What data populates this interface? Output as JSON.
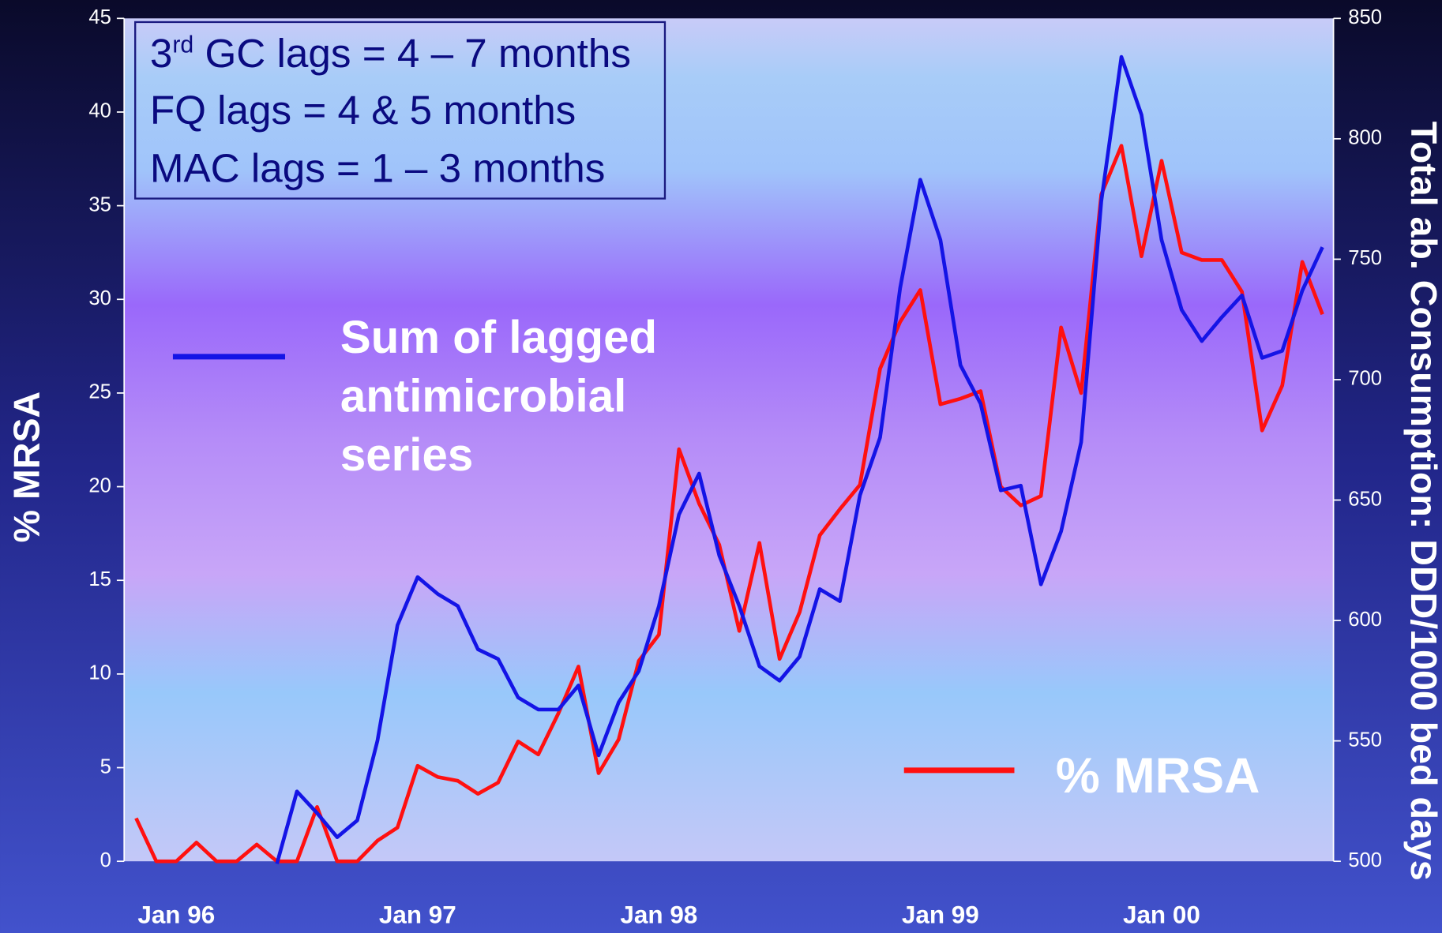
{
  "chart_data": {
    "type": "line",
    "y_label": "% MRSA",
    "y2_label": "Total ab. Consumption: DDD/1000 bed days",
    "annotation": {
      "line1": {
        "base": "3",
        "sup": "rd",
        "text": " GC lags = 4 – 7 months"
      },
      "line2": "FQ lags = 4 & 5 months",
      "line3": "MAC lags = 1 – 3 months"
    },
    "categories": [
      null,
      null,
      "Jan 96",
      null,
      null,
      null,
      null,
      null,
      null,
      null,
      null,
      null,
      null,
      null,
      "Jan 97",
      null,
      null,
      null,
      null,
      null,
      null,
      null,
      null,
      null,
      null,
      null,
      "Jan 98",
      null,
      null,
      null,
      null,
      null,
      null,
      null,
      null,
      null,
      null,
      null,
      null,
      null,
      "Jan 99",
      null,
      null,
      null,
      null,
      null,
      null,
      null,
      null,
      null,
      null,
      "Jan 00",
      null,
      null,
      null,
      null,
      null,
      null,
      null,
      null
    ],
    "ylim": [
      0,
      45
    ],
    "yticks": [
      0,
      5,
      10,
      15,
      20,
      25,
      30,
      35,
      40,
      45
    ],
    "y2lim": [
      500,
      850
    ],
    "y2ticks": [
      500,
      550,
      600,
      650,
      700,
      750,
      800,
      850
    ],
    "series": [
      {
        "name": "% MRSA",
        "color": "#ff1010",
        "axis": "y",
        "values": [
          2.3,
          0,
          0,
          1.0,
          0,
          0,
          0.9,
          0,
          0,
          2.9,
          0,
          0,
          1.1,
          1.8,
          5.1,
          4.5,
          4.3,
          3.6,
          4.2,
          6.4,
          5.7,
          7.9,
          10.4,
          4.7,
          6.5,
          10.7,
          12.1,
          22.0,
          19.1,
          16.9,
          12.3,
          17.0,
          10.8,
          13.3,
          17.4,
          18.8,
          20.1,
          26.3,
          28.8,
          30.5,
          24.4,
          24.7,
          25.1,
          20.0,
          19.0,
          19.5,
          28.5,
          25.0,
          35.6,
          38.2,
          32.3,
          37.4,
          32.5,
          32.1,
          32.1,
          30.4,
          23.0,
          25.4,
          32.0,
          29.2
        ]
      },
      {
        "name": "Sum of lagged antimicrobial series",
        "color": "#1414e6",
        "axis": "y2",
        "values": [
          null,
          null,
          null,
          null,
          null,
          null,
          null,
          499,
          529,
          520,
          510,
          517,
          550,
          598,
          618,
          611,
          606,
          588,
          584,
          568,
          563,
          563,
          573,
          544,
          566,
          579,
          606,
          644,
          661,
          627,
          606,
          581,
          575,
          585,
          613,
          608,
          652,
          676,
          738,
          783,
          758,
          706,
          690,
          654,
          656,
          615,
          637,
          674,
          774,
          834,
          810,
          758,
          729,
          716,
          726,
          735,
          709,
          712,
          737,
          755
        ]
      }
    ]
  }
}
